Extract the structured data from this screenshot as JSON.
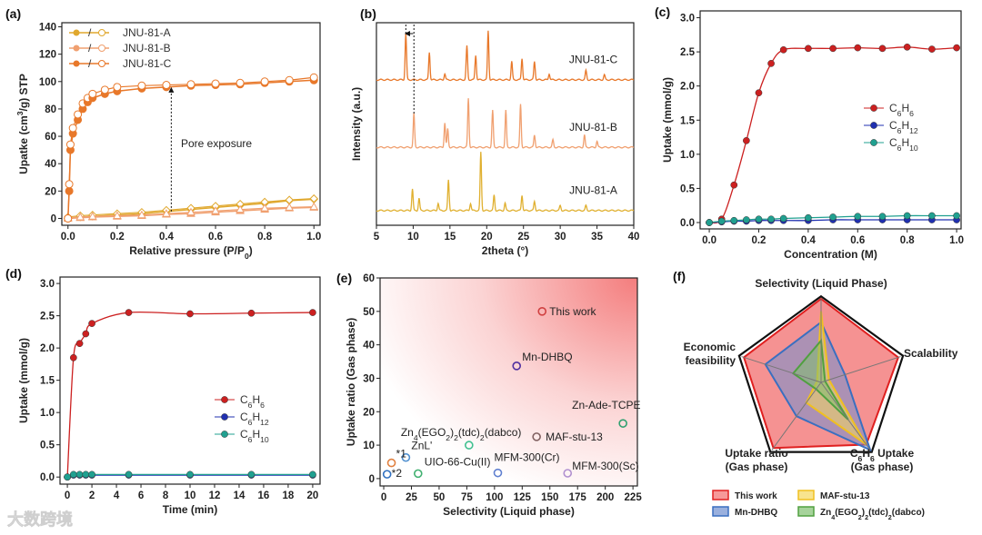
{
  "watermark": "大数跨境",
  "chart_data": [
    {
      "panel": "(a)",
      "type": "scatter",
      "xlabel": "Relative pressure (P/P0)",
      "ylabel": "Upatke (cm3/g) STP",
      "xlim": [
        0,
        1
      ],
      "ylim": [
        0,
        140
      ],
      "xticks": [
        "0.0",
        "0.2",
        "0.4",
        "0.6",
        "0.8",
        "1.0"
      ],
      "yticks": [
        "0",
        "20",
        "40",
        "60",
        "80",
        "100",
        "120",
        "140"
      ],
      "legend": "top-left",
      "annotation": "Pore exposure",
      "colors": {
        "A": "#e0a82e",
        "B": "#f0a070",
        "C": "#e8782a"
      },
      "series": [
        {
          "name": "JNU-81-A",
          "x": [
            0,
            0.05,
            0.1,
            0.2,
            0.3,
            0.4,
            0.5,
            0.6,
            0.7,
            0.8,
            0.9,
            1.0
          ],
          "adsorption": [
            0,
            1,
            1.5,
            2.5,
            3.5,
            5,
            6.5,
            8,
            9.5,
            11,
            13,
            14
          ],
          "desorption": [
            1,
            2,
            2.5,
            3.5,
            4.5,
            6,
            7.5,
            9,
            10.5,
            12,
            13.5,
            14.5
          ]
        },
        {
          "name": "JNU-81-B",
          "x": [
            0,
            0.05,
            0.1,
            0.2,
            0.3,
            0.4,
            0.5,
            0.6,
            0.7,
            0.8,
            0.9,
            1.0
          ],
          "adsorption": [
            0,
            0.5,
            1,
            1.5,
            2,
            3,
            3.5,
            4.5,
            5.5,
            6.5,
            7.5,
            8
          ],
          "desorption": [
            0.5,
            1,
            1.5,
            2,
            2.5,
            3.5,
            4.5,
            5.5,
            6.5,
            7.5,
            8,
            8.5
          ]
        },
        {
          "name": "JNU-81-C",
          "x": [
            0,
            0.005,
            0.01,
            0.02,
            0.04,
            0.06,
            0.08,
            0.1,
            0.15,
            0.2,
            0.3,
            0.4,
            0.5,
            0.6,
            0.7,
            0.8,
            0.9,
            1.0
          ],
          "adsorption": [
            0,
            20,
            50,
            62,
            72,
            80,
            85,
            88,
            91,
            93,
            95,
            96,
            97,
            97.5,
            98,
            99,
            100,
            101
          ],
          "desorption": [
            0,
            25,
            54,
            66,
            76,
            84,
            88,
            91,
            94,
            96,
            97,
            97.5,
            98,
            98.5,
            99,
            100,
            101,
            103
          ]
        }
      ]
    },
    {
      "panel": "(b)",
      "type": "line",
      "xlabel": "2theta (°)",
      "ylabel": "Intensity (a.u.)",
      "xlim": [
        5,
        40
      ],
      "xticks": [
        "5",
        "10",
        "15",
        "20",
        "25",
        "30",
        "35",
        "40"
      ],
      "colors": {
        "JNU-81-A": "#e0b030",
        "JNU-81-B": "#f0a070",
        "JNU-81-C": "#e8782a"
      },
      "series": [
        {
          "name": "JNU-81-C",
          "peaks": [
            [
              9.0,
              0.75
            ],
            [
              12.2,
              0.45
            ],
            [
              14.3,
              0.1
            ],
            [
              17.3,
              0.55
            ],
            [
              18.5,
              0.4
            ],
            [
              20.2,
              0.8
            ],
            [
              23.4,
              0.3
            ],
            [
              24.8,
              0.35
            ],
            [
              26.5,
              0.3
            ],
            [
              28.5,
              0.1
            ],
            [
              33.5,
              0.15
            ],
            [
              36,
              0.08
            ]
          ]
        },
        {
          "name": "JNU-81-B",
          "peaks": [
            [
              10.1,
              0.55
            ],
            [
              14.3,
              0.4
            ],
            [
              14.7,
              0.3
            ],
            [
              17.5,
              0.8
            ],
            [
              20.8,
              0.6
            ],
            [
              22.6,
              0.6
            ],
            [
              24.6,
              0.7
            ],
            [
              26.5,
              0.2
            ],
            [
              29,
              0.12
            ],
            [
              33.3,
              0.2
            ],
            [
              35,
              0.1
            ]
          ]
        },
        {
          "name": "JNU-81-A",
          "peaks": [
            [
              9.9,
              0.35
            ],
            [
              10.8,
              0.2
            ],
            [
              13.4,
              0.12
            ],
            [
              14.8,
              0.5
            ],
            [
              17.8,
              0.12
            ],
            [
              19.2,
              0.95
            ],
            [
              21,
              0.25
            ],
            [
              22.5,
              0.12
            ],
            [
              24.8,
              0.25
            ],
            [
              26.5,
              0.15
            ],
            [
              30,
              0.08
            ],
            [
              33.5,
              0.08
            ]
          ]
        }
      ]
    },
    {
      "panel": "(c)",
      "type": "line",
      "xlabel": "Concentration (M)",
      "ylabel": "Uptake (mmol/g)",
      "xlim": [
        0,
        1
      ],
      "ylim": [
        0,
        3
      ],
      "xticks": [
        "0.0",
        "0.2",
        "0.4",
        "0.6",
        "0.8",
        "1.0"
      ],
      "yticks": [
        "0.0",
        "0.5",
        "1.0",
        "1.5",
        "2.0",
        "2.5",
        "3.0"
      ],
      "legend": "right",
      "x": [
        0,
        0.05,
        0.1,
        0.15,
        0.2,
        0.25,
        0.3,
        0.4,
        0.5,
        0.6,
        0.7,
        0.8,
        0.9,
        1.0
      ],
      "series": [
        {
          "name": "C6H6",
          "color": "#cc2020",
          "values": [
            0,
            0.05,
            0.55,
            1.2,
            1.9,
            2.33,
            2.53,
            2.55,
            2.55,
            2.56,
            2.55,
            2.57,
            2.54,
            2.56
          ]
        },
        {
          "name": "C6H12",
          "color": "#2030b0",
          "values": [
            0,
            0.01,
            0.02,
            0.02,
            0.03,
            0.03,
            0.03,
            0.03,
            0.04,
            0.04,
            0.04,
            0.04,
            0.04,
            0.04
          ]
        },
        {
          "name": "C6H10",
          "color": "#20a090",
          "values": [
            0,
            0.02,
            0.03,
            0.04,
            0.05,
            0.05,
            0.06,
            0.07,
            0.08,
            0.09,
            0.09,
            0.1,
            0.1,
            0.1
          ]
        }
      ]
    },
    {
      "panel": "(d)",
      "type": "line",
      "xlabel": "Time (min)",
      "ylabel": "Uptake (mmol/g)",
      "xlim": [
        0,
        20
      ],
      "ylim": [
        0,
        3
      ],
      "xticks": [
        "0",
        "2",
        "4",
        "6",
        "8",
        "10",
        "12",
        "14",
        "16",
        "18",
        "20"
      ],
      "yticks": [
        "0.0",
        "0.5",
        "1.0",
        "1.5",
        "2.0",
        "2.5",
        "3.0"
      ],
      "legend": "right",
      "x": [
        0,
        0.5,
        1,
        1.5,
        2,
        5,
        10,
        15,
        20
      ],
      "series": [
        {
          "name": "C6H6",
          "color": "#cc2020",
          "values": [
            0,
            1.85,
            2.07,
            2.22,
            2.38,
            2.55,
            2.53,
            2.54,
            2.55
          ]
        },
        {
          "name": "C6H12",
          "color": "#2030b0",
          "values": [
            0,
            0.03,
            0.03,
            0.03,
            0.03,
            0.03,
            0.03,
            0.03,
            0.03
          ]
        },
        {
          "name": "C6H10",
          "color": "#20a090",
          "values": [
            0,
            0.04,
            0.04,
            0.04,
            0.04,
            0.04,
            0.04,
            0.04,
            0.04
          ]
        }
      ]
    },
    {
      "panel": "(e)",
      "type": "scatter",
      "xlabel": "Selectivity (Liquid phase)",
      "ylabel": "Uptake ratio (Gas phase)",
      "xlim": [
        0,
        225
      ],
      "ylim": [
        0,
        60
      ],
      "xticks": [
        "0",
        "25",
        "50",
        "75",
        "100",
        "125",
        "150",
        "175",
        "200",
        "225"
      ],
      "yticks": [
        "0",
        "10",
        "20",
        "30",
        "40",
        "50",
        "60"
      ],
      "points": [
        {
          "label": "This work",
          "x": 143,
          "y": 50,
          "color": "#d04040"
        },
        {
          "label": "Mn-DHBQ",
          "x": 120,
          "y": 33.7,
          "color": "#5030a0"
        },
        {
          "label": "Zn-Ade-TCPE",
          "x": 216,
          "y": 16.5,
          "color": "#30a070"
        },
        {
          "label": "MAF-stu-13",
          "x": 138,
          "y": 12.5,
          "color": "#806060"
        },
        {
          "label": "Zn4(EGO2)2(tdc)2(dabco)",
          "x": 77,
          "y": 10,
          "color": "#40c090"
        },
        {
          "label": "ZnL'",
          "x": 20,
          "y": 6.3,
          "color": "#5090d0"
        },
        {
          "label": "*1",
          "x": 7,
          "y": 4.7,
          "color": "#e08040"
        },
        {
          "label": "*2",
          "x": 3,
          "y": 1.3,
          "color": "#3070c0"
        },
        {
          "label": "UIO-66-Cu(II)",
          "x": 31,
          "y": 1.5,
          "color": "#40b070"
        },
        {
          "label": "MFM-300(Cr)",
          "x": 103,
          "y": 1.7,
          "color": "#6080d0"
        },
        {
          "label": "MFM-300(Sc)",
          "x": 166,
          "y": 1.6,
          "color": "#b090d0"
        }
      ]
    },
    {
      "panel": "(f)",
      "type": "radar",
      "axes": [
        "Selectivity (Liquid Phase)",
        "Scalability",
        "C6H6 Uptake (Gas phase)",
        "Uptake ratio (Gas phase)",
        "Economic feasibility"
      ],
      "series": [
        {
          "name": "This work",
          "color": "#e02020",
          "fill": "#f26d6d",
          "values": [
            1,
            0.97,
            0.92,
            0.97,
            0.97
          ]
        },
        {
          "name": "Mn-DHBQ",
          "color": "#3a6fc0",
          "fill": "#6f8fd0",
          "values": [
            0.72,
            0.3,
            1.0,
            0.5,
            0.7
          ]
        },
        {
          "name": "MAF-stu-13",
          "color": "#f0c020",
          "fill": "#f5d860",
          "values": [
            0.85,
            0.1,
            0.92,
            0.3,
            0.05
          ]
        },
        {
          "name": "Zn4(EGO2)2(tdc)2(dabco)",
          "color": "#50a040",
          "fill": "#80c070",
          "values": [
            0.5,
            0.05,
            0.55,
            0.1,
            0.35
          ]
        }
      ],
      "legend": "bottom"
    }
  ]
}
